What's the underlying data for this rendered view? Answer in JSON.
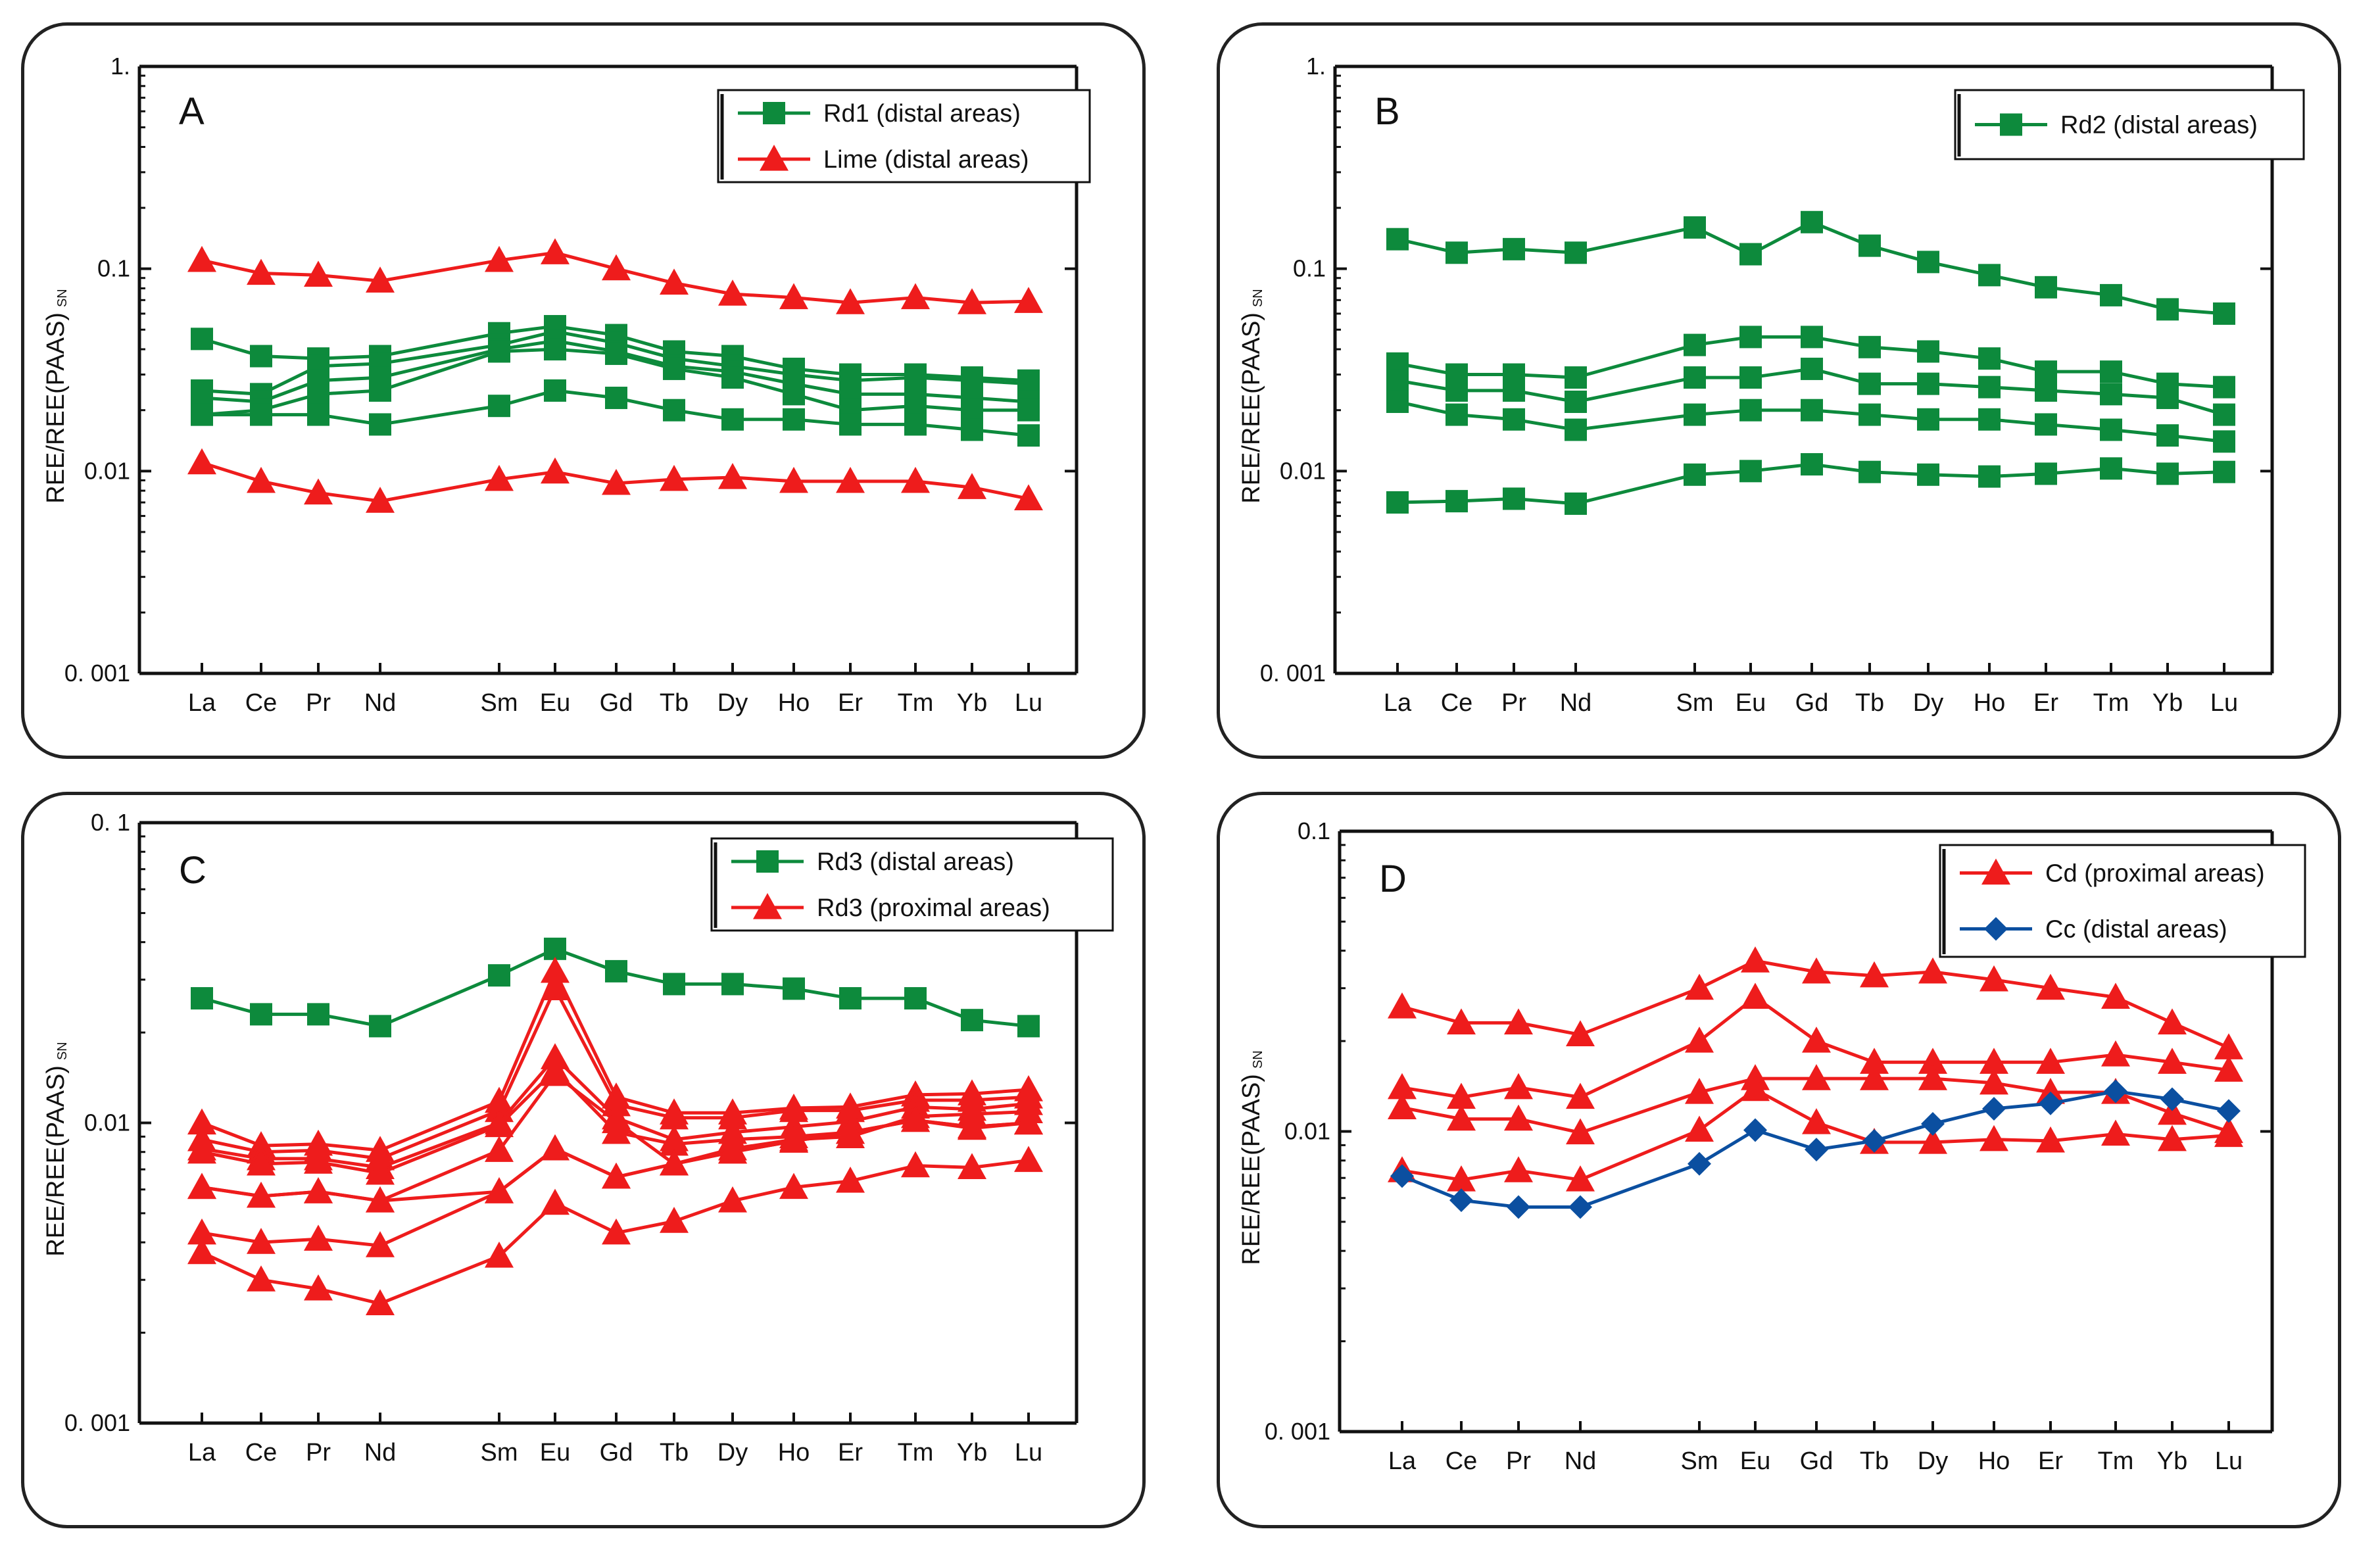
{
  "colors": {
    "green": "#0d8a3c",
    "red": "#ee1c1c",
    "blue": "#0b4fa0",
    "axis": "#111111"
  },
  "chart_data": [
    {
      "panel": "A",
      "type": "line",
      "yscale": "log",
      "ylim": [
        0.001,
        1
      ],
      "ylabel": "REE/REE(PAAS)",
      "ylabel_sub": "SN",
      "yticks": [
        {
          "value": 1,
          "label": "1."
        },
        {
          "value": 0.1,
          "label": "0.1"
        },
        {
          "value": 0.01,
          "label": "0.01"
        },
        {
          "value": 0.001,
          "label": "0. 001"
        }
      ],
      "categories": [
        "La",
        "Ce",
        "Pr",
        "Nd",
        "Sm",
        "Eu",
        "Gd",
        "Tb",
        "Dy",
        "Ho",
        "Er",
        "Tm",
        "Yb",
        "Lu"
      ],
      "legend": [
        {
          "label": "Rd1 (distal areas)",
          "color": "#0d8a3c",
          "marker": "square"
        },
        {
          "label": "Lime (distal areas)",
          "color": "#ee1c1c",
          "marker": "triangle"
        }
      ],
      "series": [
        {
          "group": "Rd1 (distal areas)",
          "color": "#0d8a3c",
          "marker": "square",
          "values": [
            0.045,
            0.037,
            0.036,
            0.037,
            0.048,
            0.052,
            0.047,
            0.039,
            0.037,
            0.032,
            0.03,
            0.03,
            0.029,
            0.028
          ]
        },
        {
          "group": "Rd1 (distal areas)",
          "color": "#0d8a3c",
          "marker": "square",
          "values": [
            0.025,
            0.024,
            0.033,
            0.034,
            0.042,
            0.049,
            0.043,
            0.036,
            0.033,
            0.03,
            0.028,
            0.029,
            0.028,
            0.027
          ]
        },
        {
          "group": "Rd1 (distal areas)",
          "color": "#0d8a3c",
          "marker": "square",
          "values": [
            0.023,
            0.022,
            0.028,
            0.029,
            0.04,
            0.044,
            0.039,
            0.033,
            0.031,
            0.027,
            0.024,
            0.024,
            0.023,
            0.022
          ]
        },
        {
          "group": "Rd1 (distal areas)",
          "color": "#0d8a3c",
          "marker": "square",
          "values": [
            0.019,
            0.02,
            0.024,
            0.025,
            0.039,
            0.04,
            0.038,
            0.032,
            0.029,
            0.024,
            0.02,
            0.021,
            0.02,
            0.02
          ]
        },
        {
          "group": "Rd1 (distal areas)",
          "color": "#0d8a3c",
          "marker": "square",
          "values": [
            0.019,
            0.019,
            0.019,
            0.017,
            0.021,
            0.025,
            0.023,
            0.02,
            0.018,
            0.018,
            0.017,
            0.017,
            0.016,
            0.015
          ]
        },
        {
          "group": "Lime (distal areas)",
          "color": "#ee1c1c",
          "marker": "triangle",
          "values": [
            0.11,
            0.095,
            0.093,
            0.087,
            0.11,
            0.12,
            0.1,
            0.085,
            0.075,
            0.072,
            0.068,
            0.072,
            0.068,
            0.069
          ]
        },
        {
          "group": "Lime (distal areas)",
          "color": "#ee1c1c",
          "marker": "triangle",
          "values": [
            0.011,
            0.0089,
            0.0078,
            0.0071,
            0.0091,
            0.0099,
            0.0087,
            0.0091,
            0.0093,
            0.0089,
            0.0089,
            0.0089,
            0.0083,
            0.0073
          ]
        }
      ]
    },
    {
      "panel": "B",
      "type": "line",
      "yscale": "log",
      "ylim": [
        0.001,
        1
      ],
      "ylabel": "REE/REE(PAAS)",
      "ylabel_sub": "SN",
      "yticks": [
        {
          "value": 1,
          "label": "1."
        },
        {
          "value": 0.1,
          "label": "0.1"
        },
        {
          "value": 0.01,
          "label": "0.01"
        },
        {
          "value": 0.001,
          "label": "0. 001"
        }
      ],
      "categories": [
        "La",
        "Ce",
        "Pr",
        "Nd",
        "Sm",
        "Eu",
        "Gd",
        "Tb",
        "Dy",
        "Ho",
        "Er",
        "Tm",
        "Yb",
        "Lu"
      ],
      "legend": [
        {
          "label": "Rd2 (distal areas)",
          "color": "#0d8a3c",
          "marker": "square"
        }
      ],
      "series": [
        {
          "group": "Rd2 (distal areas)",
          "color": "#0d8a3c",
          "marker": "square",
          "values": [
            0.14,
            0.12,
            0.125,
            0.12,
            0.16,
            0.118,
            0.17,
            0.13,
            0.108,
            0.093,
            0.081,
            0.074,
            0.063,
            0.06
          ]
        },
        {
          "group": "Rd2 (distal areas)",
          "color": "#0d8a3c",
          "marker": "square",
          "values": [
            0.034,
            0.03,
            0.03,
            0.029,
            0.042,
            0.046,
            0.046,
            0.041,
            0.039,
            0.036,
            0.031,
            0.031,
            0.027,
            0.026
          ]
        },
        {
          "group": "Rd2 (distal areas)",
          "color": "#0d8a3c",
          "marker": "square",
          "values": [
            0.028,
            0.025,
            0.025,
            0.022,
            0.029,
            0.029,
            0.032,
            0.027,
            0.027,
            0.026,
            0.025,
            0.024,
            0.023,
            0.019
          ]
        },
        {
          "group": "Rd2 (distal areas)",
          "color": "#0d8a3c",
          "marker": "square",
          "values": [
            0.022,
            0.019,
            0.018,
            0.016,
            0.019,
            0.02,
            0.02,
            0.019,
            0.018,
            0.018,
            0.017,
            0.016,
            0.015,
            0.014
          ]
        },
        {
          "group": "Rd2 (distal areas)",
          "color": "#0d8a3c",
          "marker": "square",
          "values": [
            0.007,
            0.0071,
            0.0073,
            0.0069,
            0.0096,
            0.01,
            0.0108,
            0.0099,
            0.0096,
            0.0094,
            0.0097,
            0.0103,
            0.0097,
            0.0099
          ]
        }
      ]
    },
    {
      "panel": "C",
      "type": "line",
      "yscale": "log",
      "ylim": [
        0.001,
        0.1
      ],
      "ylabel": "REE/REE(PAAS)",
      "ylabel_sub": "SN",
      "yticks": [
        {
          "value": 0.1,
          "label": "0. 1"
        },
        {
          "value": 0.01,
          "label": "0.01"
        },
        {
          "value": 0.001,
          "label": "0. 001"
        }
      ],
      "categories": [
        "La",
        "Ce",
        "Pr",
        "Nd",
        "Sm",
        "Eu",
        "Gd",
        "Tb",
        "Dy",
        "Ho",
        "Er",
        "Tm",
        "Yb",
        "Lu"
      ],
      "legend": [
        {
          "label": "Rd3 (distal areas)",
          "color": "#0d8a3c",
          "marker": "square"
        },
        {
          "label": "Rd3 (proximal areas)",
          "color": "#ee1c1c",
          "marker": "triangle"
        }
      ],
      "series": [
        {
          "group": "Rd3 (distal areas)",
          "color": "#0d8a3c",
          "marker": "square",
          "values": [
            0.026,
            0.023,
            0.023,
            0.021,
            0.031,
            0.038,
            0.032,
            0.029,
            0.029,
            0.028,
            0.026,
            0.026,
            0.022,
            0.021
          ]
        },
        {
          "group": "Rd3 (proximal areas)",
          "color": "#ee1c1c",
          "marker": "triangle",
          "values": [
            0.01,
            0.0084,
            0.0085,
            0.0081,
            0.0118,
            0.032,
            0.0122,
            0.0108,
            0.0108,
            0.0112,
            0.0113,
            0.0124,
            0.0125,
            0.0129
          ]
        },
        {
          "group": "Rd3 (proximal areas)",
          "color": "#ee1c1c",
          "marker": "triangle",
          "values": [
            0.0088,
            0.008,
            0.0081,
            0.0076,
            0.011,
            0.028,
            0.0115,
            0.0104,
            0.0104,
            0.011,
            0.011,
            0.0119,
            0.0119,
            0.0122
          ]
        },
        {
          "group": "Rd3 (proximal areas)",
          "color": "#ee1c1c",
          "marker": "triangle",
          "values": [
            0.0082,
            0.0076,
            0.0076,
            0.0071,
            0.01,
            0.0165,
            0.0104,
            0.0088,
            0.0093,
            0.0097,
            0.0101,
            0.0113,
            0.0111,
            0.0116
          ]
        },
        {
          "group": "Rd3 (proximal areas)",
          "color": "#ee1c1c",
          "marker": "triangle",
          "values": [
            0.008,
            0.0073,
            0.0074,
            0.0068,
            0.0098,
            0.015,
            0.0093,
            0.0085,
            0.0088,
            0.009,
            0.0093,
            0.0102,
            0.0096,
            0.01
          ]
        },
        {
          "group": "Rd3 (proximal areas)",
          "color": "#ee1c1c",
          "marker": "triangle",
          "values": [
            0.0061,
            0.0057,
            0.0059,
            0.0055,
            0.0081,
            0.0145,
            0.0101,
            0.0073,
            0.0082,
            0.0088,
            0.009,
            0.0105,
            0.0107,
            0.0109
          ]
        },
        {
          "group": "Rd3 (proximal areas)",
          "color": "#ee1c1c",
          "marker": "triangle",
          "values": [
            0.0061,
            0.0057,
            0.0059,
            0.0055,
            0.0059,
            0.0082,
            0.0066,
            0.0073,
            0.008,
            0.0087,
            0.0093,
            0.0102,
            0.0097,
            0.01
          ]
        },
        {
          "group": "Rd3 (proximal areas)",
          "color": "#ee1c1c",
          "marker": "triangle",
          "values": [
            0.0043,
            0.004,
            0.0041,
            0.0039,
            0.0059,
            0.0082,
            0.0066,
            0.0073,
            0.008,
            0.0087,
            0.0093,
            0.0102,
            0.0097,
            0.01
          ]
        },
        {
          "group": "Rd3 (proximal areas)",
          "color": "#ee1c1c",
          "marker": "triangle",
          "values": [
            0.0037,
            0.003,
            0.0028,
            0.0025,
            0.0036,
            0.0054,
            0.0043,
            0.0047,
            0.0055,
            0.0061,
            0.0064,
            0.0072,
            0.0071,
            0.0075
          ]
        }
      ]
    },
    {
      "panel": "D",
      "type": "line",
      "yscale": "log",
      "ylim": [
        0.001,
        0.1
      ],
      "ylabel": "REE/REE(PAAS)",
      "ylabel_sub": "SN",
      "yticks": [
        {
          "value": 0.1,
          "label": "0.1"
        },
        {
          "value": 0.01,
          "label": "0.01"
        },
        {
          "value": 0.001,
          "label": "0. 001"
        }
      ],
      "categories": [
        "La",
        "Ce",
        "Pr",
        "Nd",
        "Sm",
        "Eu",
        "Gd",
        "Tb",
        "Dy",
        "Ho",
        "Er",
        "Tm",
        "Yb",
        "Lu"
      ],
      "legend": [
        {
          "label": "Cd (proximal areas)",
          "color": "#ee1c1c",
          "marker": "triangle"
        },
        {
          "label": "Cc (distal areas)",
          "color": "#0b4fa0",
          "marker": "diamond"
        }
      ],
      "series": [
        {
          "group": "Cd (proximal areas)",
          "color": "#ee1c1c",
          "marker": "triangle",
          "values": [
            0.026,
            0.023,
            0.023,
            0.021,
            0.03,
            0.037,
            0.034,
            0.033,
            0.034,
            0.032,
            0.03,
            0.028,
            0.023,
            0.019
          ]
        },
        {
          "group": "Cd (proximal areas)",
          "color": "#ee1c1c",
          "marker": "triangle",
          "values": [
            0.014,
            0.013,
            0.014,
            0.013,
            0.02,
            0.028,
            0.02,
            0.017,
            0.017,
            0.017,
            0.017,
            0.018,
            0.017,
            0.016
          ]
        },
        {
          "group": "Cd (proximal areas)",
          "color": "#ee1c1c",
          "marker": "triangle",
          "values": [
            0.012,
            0.011,
            0.011,
            0.0099,
            0.0135,
            0.015,
            0.015,
            0.015,
            0.015,
            0.0145,
            0.0135,
            0.0135,
            0.0115,
            0.01
          ]
        },
        {
          "group": "Cd (proximal areas)",
          "color": "#ee1c1c",
          "marker": "triangle",
          "values": [
            0.0074,
            0.0069,
            0.0074,
            0.0069,
            0.0101,
            0.0138,
            0.0107,
            0.0092,
            0.0092,
            0.0094,
            0.0093,
            0.0098,
            0.0094,
            0.0097
          ]
        },
        {
          "group": "Cc (distal areas)",
          "color": "#0b4fa0",
          "marker": "diamond",
          "values": [
            0.0071,
            0.0059,
            0.0056,
            0.0056,
            0.0078,
            0.0101,
            0.0087,
            0.0093,
            0.0106,
            0.0119,
            0.0124,
            0.0136,
            0.0128,
            0.0117
          ]
        }
      ]
    }
  ]
}
